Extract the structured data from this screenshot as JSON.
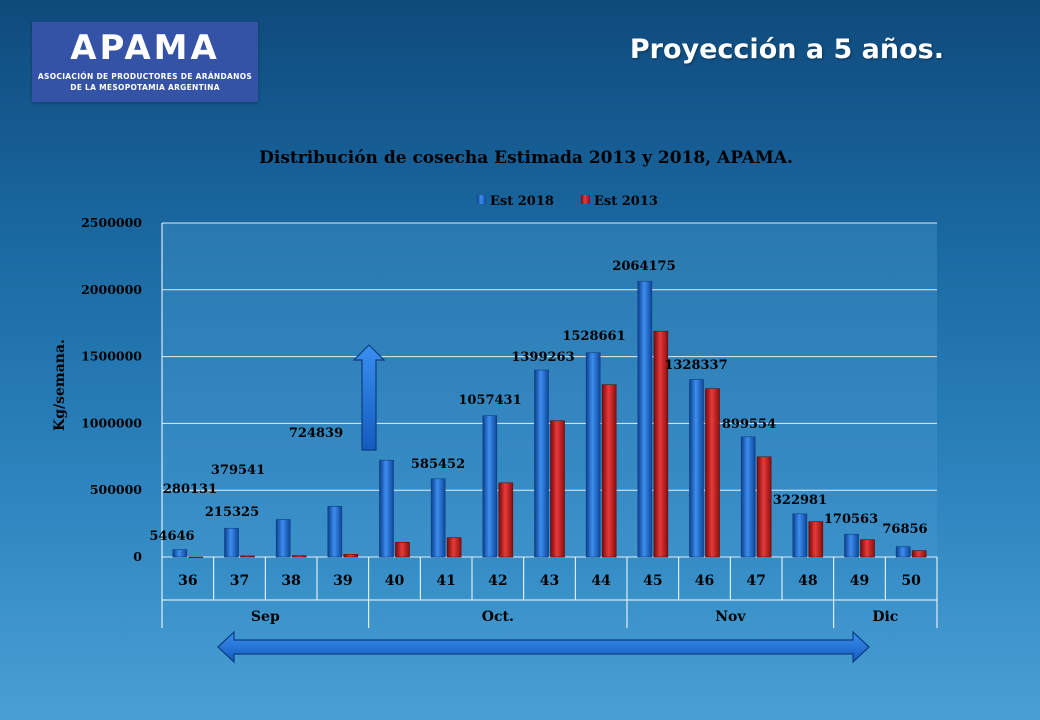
{
  "logo": {
    "word": "APAMA",
    "line1": "ASOCIACIÓN DE PRODUCTORES DE ARÁNDANOS",
    "line2": "DE LA MESOPOTAMIA ARGENTINA"
  },
  "page_title": "Proyección a 5 años.",
  "chart_data": {
    "type": "bar",
    "title": "Distribución de cosecha Estimada 2013 y 2018, APAMA.",
    "ylabel": "Kg/semana.",
    "xlabel": "",
    "ylim": [
      0,
      2500000
    ],
    "yticks": [
      0,
      500000,
      1000000,
      1500000,
      2000000,
      2500000
    ],
    "categories": [
      "36",
      "37",
      "38",
      "39",
      "40",
      "41",
      "42",
      "43",
      "44",
      "45",
      "46",
      "47",
      "48",
      "49",
      "50"
    ],
    "months": [
      {
        "label": "Sep",
        "span": 4
      },
      {
        "label": "Oct.",
        "span": 5
      },
      {
        "label": "Nov",
        "span": 4
      },
      {
        "label": "Dic",
        "span": 2
      }
    ],
    "legend_position": "top",
    "grid": true,
    "series": [
      {
        "name": "Est 2018",
        "color": "#1f6fd6",
        "values": [
          54646,
          215325,
          280131,
          379541,
          724839,
          585452,
          1057431,
          1399263,
          1528661,
          2064175,
          1328337,
          899554,
          322981,
          170563,
          76856
        ]
      },
      {
        "name": "Est 2013",
        "color": "#cc1a1a",
        "values": [
          0,
          8000,
          10000,
          20000,
          110000,
          145000,
          555000,
          1020000,
          1290000,
          1690000,
          1260000,
          750000,
          265000,
          130000,
          48000
        ]
      }
    ],
    "data_labels": [
      {
        "text": "54646",
        "category": "36",
        "value": 54646
      },
      {
        "text": "215325",
        "category": "37",
        "value": 215325
      },
      {
        "text": "280131",
        "category": "36",
        "value": 280131
      },
      {
        "text": "379541",
        "category": "37",
        "value": 379541
      },
      {
        "text": "724839",
        "category": "39",
        "value": 724839
      },
      {
        "text": "585452",
        "category": "41",
        "value": 585452
      },
      {
        "text": "1057431",
        "category": "42",
        "value": 1057431
      },
      {
        "text": "1399263",
        "category": "43",
        "value": 1399263
      },
      {
        "text": "1528661",
        "category": "44",
        "value": 1528661
      },
      {
        "text": "2064175",
        "category": "45",
        "value": 2064175
      },
      {
        "text": "1328337",
        "category": "46",
        "value": 1328337
      },
      {
        "text": "899554",
        "category": "47",
        "value": 899554
      },
      {
        "text": "322981",
        "category": "48",
        "value": 322981
      },
      {
        "text": "170563",
        "category": "49",
        "value": 170563
      },
      {
        "text": "76856",
        "category": "50",
        "value": 76856
      }
    ]
  },
  "colors": {
    "bar_2018": "#1f6fd6",
    "bar_2013": "#cc1a1a",
    "arrow": "#1f6fd6",
    "plot_background": "#4a9ad2"
  }
}
